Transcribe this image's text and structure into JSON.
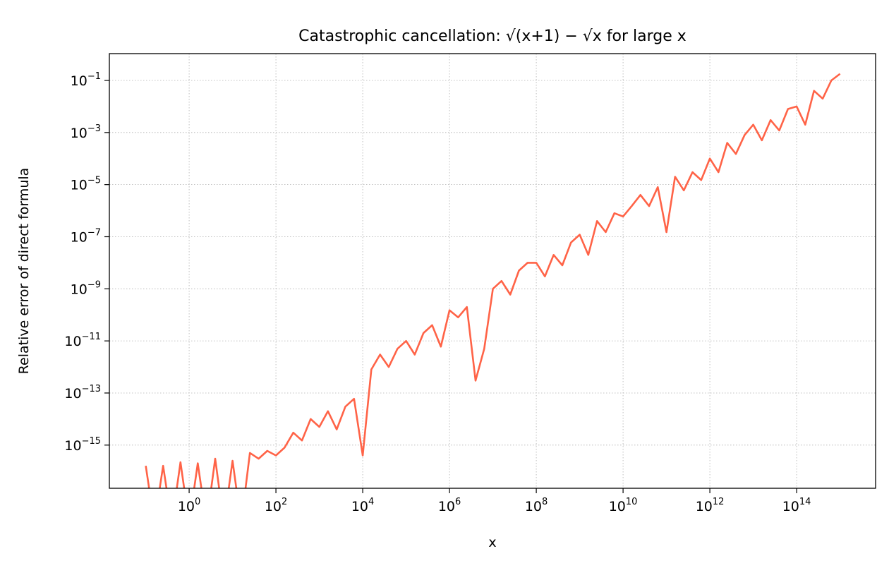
{
  "chart_data": {
    "type": "line",
    "title": "Catastrophic cancellation: √(x+1) − √x for large x",
    "xlabel": "x",
    "ylabel": "Relative error of direct formula",
    "xscale": "log",
    "yscale": "log",
    "xlim": [
      0.0145,
      6600000000000000.0
    ],
    "ylim": [
      2.2e-17,
      1.07
    ],
    "grid": true,
    "grid_style": "dotted",
    "line_color": "#FF6347",
    "x_ticks": [
      {
        "base": "10",
        "exp": "0",
        "value": 1.0
      },
      {
        "base": "10",
        "exp": "2",
        "value": 100.0
      },
      {
        "base": "10",
        "exp": "4",
        "value": 10000.0
      },
      {
        "base": "10",
        "exp": "6",
        "value": 1000000.0
      },
      {
        "base": "10",
        "exp": "8",
        "value": 100000000.0
      },
      {
        "base": "10",
        "exp": "10",
        "value": 10000000000.0
      },
      {
        "base": "10",
        "exp": "12",
        "value": 1000000000000.0
      },
      {
        "base": "10",
        "exp": "14",
        "value": 100000000000000.0
      }
    ],
    "y_ticks": [
      {
        "base": "10",
        "exp": "−1",
        "value": 0.1
      },
      {
        "base": "10",
        "exp": "−3",
        "value": 0.001
      },
      {
        "base": "10",
        "exp": "−5",
        "value": 1e-05
      },
      {
        "base": "10",
        "exp": "−7",
        "value": 1e-07
      },
      {
        "base": "10",
        "exp": "−9",
        "value": 1e-09
      },
      {
        "base": "10",
        "exp": "−11",
        "value": 1e-11
      },
      {
        "base": "10",
        "exp": "−13",
        "value": 1e-13
      },
      {
        "base": "10",
        "exp": "−15",
        "value": 1e-15
      }
    ],
    "x": [
      0.1,
      0.158,
      0.251,
      0.398,
      0.631,
      1.0,
      1.58,
      2.51,
      3.98,
      6.31,
      10.0,
      15.8,
      25.1,
      39.8,
      63.1,
      100.0,
      158.0,
      251.0,
      398.0,
      631.0,
      1000.0,
      1580.0,
      2510.0,
      3980.0,
      6310.0,
      10000.0,
      15800.0,
      25100.0,
      39800.0,
      63100.0,
      100000.0,
      158000.0,
      251000.0,
      398000.0,
      631000.0,
      1000000.0,
      1580000.0,
      2510000.0,
      3980000.0,
      6310000.0,
      10000000.0,
      15800000.0,
      25100000.0,
      39800000.0,
      63100000.0,
      100000000.0,
      158000000.0,
      251000000.0,
      398000000.0,
      631000000.0,
      1000000000.0,
      1580000000.0,
      2510000000.0,
      3980000000.0,
      6310000000.0,
      10000000000.0,
      15800000000.0,
      25100000000.0,
      39800000000.0,
      63100000000.0,
      100000000000.0,
      158000000000.0,
      251000000000.0,
      398000000000.0,
      631000000000.0,
      1000000000000.0,
      1580000000000.0,
      2510000000000.0,
      3980000000000.0,
      6310000000000.0,
      10000000000000.0,
      15800000000000.0,
      25100000000000.0,
      39800000000000.0,
      63100000000000.0,
      100000000000000.0,
      158000000000000.0,
      251000000000000.0,
      398000000000000.0,
      631000000000000.0,
      1000000000000000.0
    ],
    "y": [
      1.6e-16,
      0,
      1.6e-16,
      0,
      2.2e-16,
      0,
      2e-16,
      0,
      3e-16,
      0,
      2.5e-16,
      0,
      5e-16,
      3e-16,
      6e-16,
      4e-16,
      8e-16,
      3e-15,
      1.5e-15,
      1e-14,
      5e-15,
      2e-14,
      4e-15,
      3e-14,
      6e-14,
      4e-16,
      8e-13,
      3e-12,
      1e-12,
      5e-12,
      1e-11,
      3e-12,
      2e-11,
      4e-11,
      6e-12,
      1.5e-10,
      8e-11,
      2e-10,
      3e-13,
      5e-12,
      1e-09,
      2e-09,
      6e-10,
      5e-09,
      1e-08,
      1e-08,
      3e-09,
      2e-08,
      8e-09,
      6e-08,
      1.2e-07,
      2e-08,
      4e-07,
      1.5e-07,
      8e-07,
      6e-07,
      1.5e-06,
      4e-06,
      1.5e-06,
      8e-06,
      1.5e-07,
      2e-05,
      6e-06,
      3e-05,
      1.5e-05,
      0.0001,
      3e-05,
      0.0004,
      0.00015,
      0.0008,
      0.002,
      0.0005,
      0.003,
      0.0012,
      0.008,
      0.01,
      0.002,
      0.04,
      0.02,
      0.1,
      0.18
    ]
  }
}
